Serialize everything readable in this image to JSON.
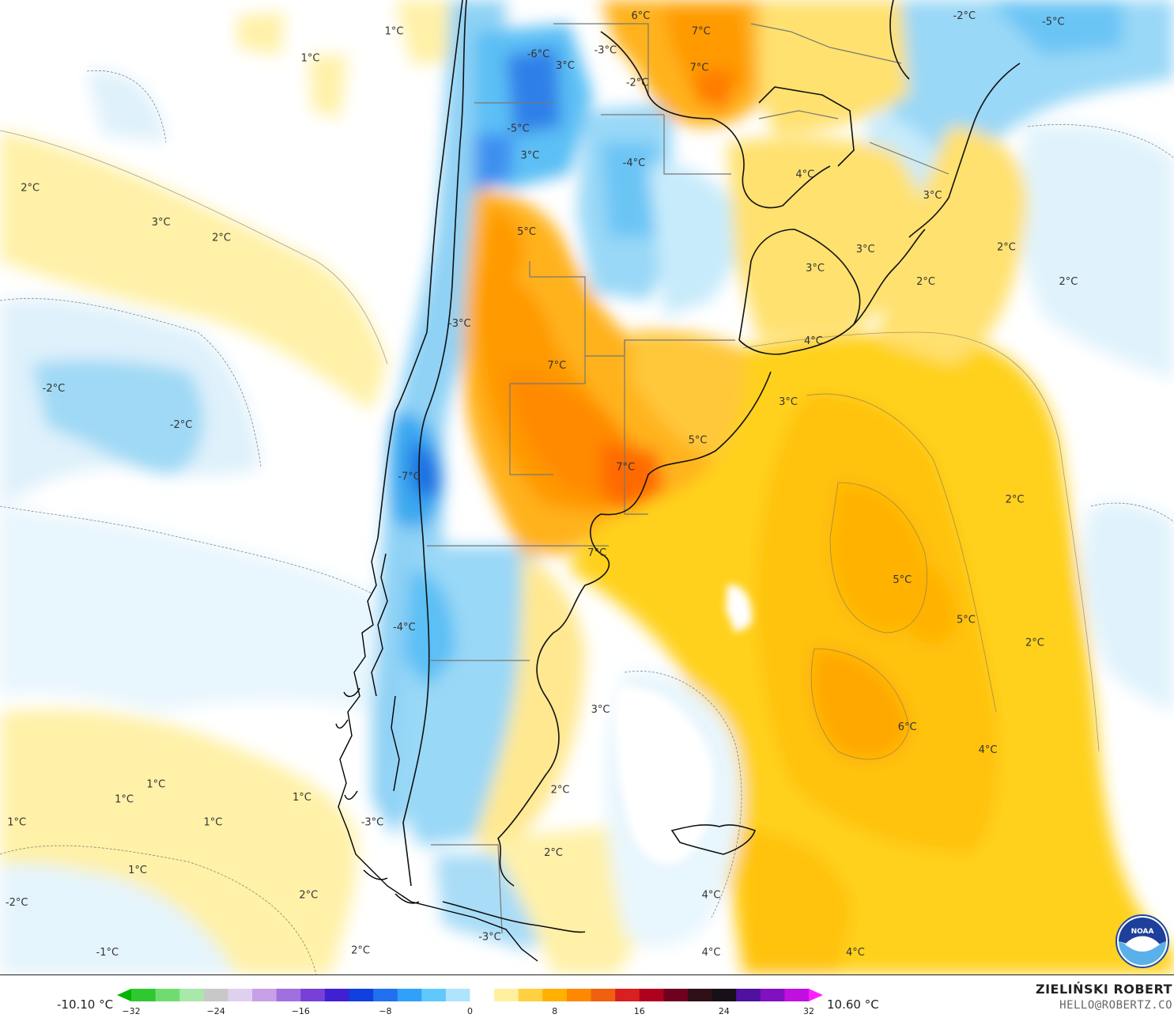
{
  "map": {
    "labels": [
      {
        "text": "1°C",
        "lon": -76.5,
        "lat": -20.8
      },
      {
        "text": "1°C",
        "lon": -81.5,
        "lat": -22.2
      },
      {
        "text": "6°C",
        "lon": -61.8,
        "lat": -20.0
      },
      {
        "text": "7°C",
        "lon": -58.2,
        "lat": -20.8
      },
      {
        "text": "-2°C",
        "lon": -42.5,
        "lat": -20.0
      },
      {
        "text": "-5°C",
        "lon": -37.2,
        "lat": -20.3
      },
      {
        "text": "-6°C",
        "lon": -67.9,
        "lat": -22.0
      },
      {
        "text": "-3°C",
        "lon": -63.9,
        "lat": -21.8
      },
      {
        "text": "3°C",
        "lon": -66.3,
        "lat": -22.6
      },
      {
        "text": "7°C",
        "lon": -58.3,
        "lat": -22.7
      },
      {
        "text": "-2°C",
        "lon": -62.0,
        "lat": -23.5
      },
      {
        "text": "-5°C",
        "lon": -69.1,
        "lat": -25.9
      },
      {
        "text": "3°C",
        "lon": -68.4,
        "lat": -27.3
      },
      {
        "text": "-4°C",
        "lon": -62.2,
        "lat": -27.7
      },
      {
        "text": "4°C",
        "lon": -52.0,
        "lat": -28.3
      },
      {
        "text": "2°C",
        "lon": -98.2,
        "lat": -29.0
      },
      {
        "text": "3°C",
        "lon": -44.4,
        "lat": -29.4
      },
      {
        "text": "3°C",
        "lon": -90.4,
        "lat": -30.8
      },
      {
        "text": "2°C",
        "lon": -86.8,
        "lat": -31.6
      },
      {
        "text": "5°C",
        "lon": -68.6,
        "lat": -31.3
      },
      {
        "text": "2°C",
        "lon": -40.0,
        "lat": -32.1
      },
      {
        "text": "3°C",
        "lon": -48.4,
        "lat": -32.2
      },
      {
        "text": "3°C",
        "lon": -51.4,
        "lat": -33.2
      },
      {
        "text": "2°C",
        "lon": -44.8,
        "lat": -33.9
      },
      {
        "text": "2°C",
        "lon": -36.3,
        "lat": -33.9
      },
      {
        "text": "-3°C",
        "lon": -72.6,
        "lat": -36.1
      },
      {
        "text": "4°C",
        "lon": -51.5,
        "lat": -37.0
      },
      {
        "text": "7°C",
        "lon": -66.8,
        "lat": -38.3
      },
      {
        "text": "-2°C",
        "lon": -96.8,
        "lat": -39.5
      },
      {
        "text": "3°C",
        "lon": -53.0,
        "lat": -40.2
      },
      {
        "text": "-2°C",
        "lon": -89.2,
        "lat": -41.4
      },
      {
        "text": "5°C",
        "lon": -58.4,
        "lat": -42.2
      },
      {
        "text": "7°C",
        "lon": -62.7,
        "lat": -43.6
      },
      {
        "text": "-7°C",
        "lon": -75.6,
        "lat": -44.1
      },
      {
        "text": "2°C",
        "lon": -39.5,
        "lat": -45.3
      },
      {
        "text": "7°C",
        "lon": -64.4,
        "lat": -48.1
      },
      {
        "text": "5°C",
        "lon": -46.2,
        "lat": -49.5
      },
      {
        "text": "5°C",
        "lon": -42.4,
        "lat": -51.6
      },
      {
        "text": "-4°C",
        "lon": -75.9,
        "lat": -52.0
      },
      {
        "text": "2°C",
        "lon": -38.3,
        "lat": -52.8
      },
      {
        "text": "3°C",
        "lon": -64.2,
        "lat": -56.3
      },
      {
        "text": "6°C",
        "lon": -45.9,
        "lat": -57.2
      },
      {
        "text": "4°C",
        "lon": -41.1,
        "lat": -58.4
      },
      {
        "text": "2°C",
        "lon": -66.6,
        "lat": -60.5
      },
      {
        "text": "1°C",
        "lon": -90.7,
        "lat": -60.2
      },
      {
        "text": "1°C",
        "lon": -92.6,
        "lat": -61.0
      },
      {
        "text": "1°C",
        "lon": -82.0,
        "lat": -60.9
      },
      {
        "text": "1°C",
        "lon": -99.0,
        "lat": -62.2
      },
      {
        "text": "1°C",
        "lon": -87.3,
        "lat": -62.2
      },
      {
        "text": "-3°C",
        "lon": -77.8,
        "lat": -62.2
      },
      {
        "text": "2°C",
        "lon": -67.0,
        "lat": -63.8
      },
      {
        "text": "1°C",
        "lon": -91.8,
        "lat": -64.7
      },
      {
        "text": "2°C",
        "lon": -81.6,
        "lat": -66.0
      },
      {
        "text": "4°C",
        "lon": -57.6,
        "lat": -66.0
      },
      {
        "text": "-2°C",
        "lon": -99.0,
        "lat": -66.4
      },
      {
        "text": "-3°C",
        "lon": -70.8,
        "lat": -68.2
      },
      {
        "text": "-1°C",
        "lon": -93.6,
        "lat": -69.0
      },
      {
        "text": "2°C",
        "lon": -78.5,
        "lat": -68.9
      },
      {
        "text": "4°C",
        "lon": -57.6,
        "lat": -69.0
      },
      {
        "text": "4°C",
        "lon": -49.0,
        "lat": -69.0
      }
    ]
  },
  "legend": {
    "min_label": "-10.10 °C",
    "max_label": "10.60 °C",
    "ticks": [
      "−32",
      "−24",
      "−16",
      "−8",
      "0",
      "8",
      "16",
      "24",
      "32"
    ],
    "tick_values": [
      -32,
      -24,
      -16,
      -8,
      0,
      8,
      16,
      24,
      32
    ],
    "range": [
      -32,
      32
    ],
    "colors": [
      "#00b400",
      "#30c830",
      "#70dc70",
      "#a8e8a8",
      "#c8c8c8",
      "#e0d0f0",
      "#c8a0e8",
      "#a070e0",
      "#7840d8",
      "#4020d0",
      "#1040e0",
      "#2070f0",
      "#30a0f8",
      "#60c8fc",
      "#b0e4fc",
      "#ffffff",
      "#fff0a0",
      "#ffd040",
      "#ffb000",
      "#ff8800",
      "#f06010",
      "#d82020",
      "#b00020",
      "#700020",
      "#301018",
      "#181018",
      "#5010a0",
      "#8010c0",
      "#c010e0",
      "#ff20ff"
    ]
  },
  "credits": {
    "name": "ZIELIŃSKI ROBERT",
    "email": "HELLO@ROBERTZ.CO"
  },
  "logo": {
    "name": "noaa-logo",
    "text": "NOAA"
  }
}
